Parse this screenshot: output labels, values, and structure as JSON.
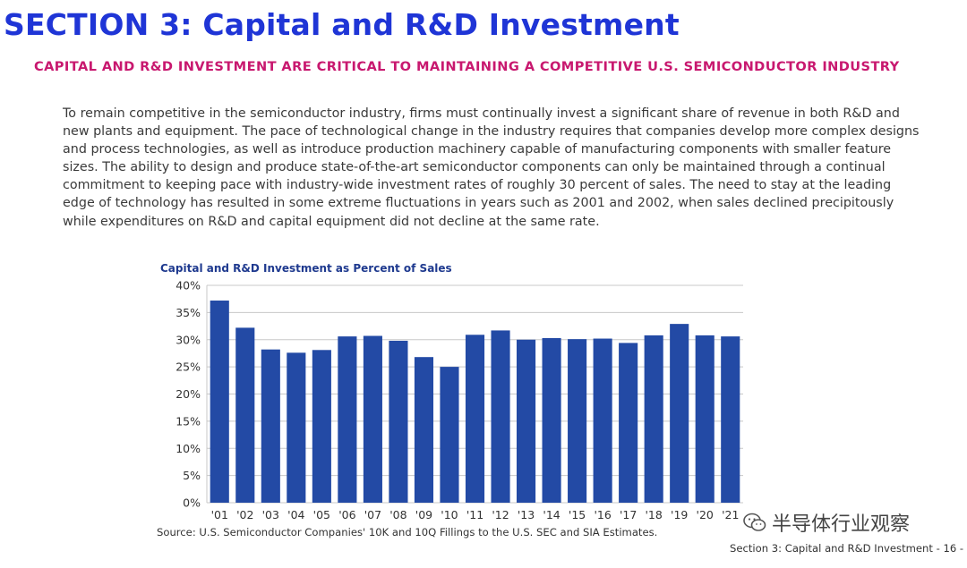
{
  "header": {
    "section_title": "SECTION 3: Capital and R&D Investment",
    "subtitle": "CAPITAL AND R&D INVESTMENT ARE CRITICAL TO MAINTAINING A COMPETITIVE U.S. SEMICONDUCTOR INDUSTRY"
  },
  "body": {
    "paragraph": "To remain competitive in the semiconductor industry, firms must continually invest a significant share of revenue in both R&D and new plants and equipment. The pace of technological change in the industry requires that companies develop more complex designs and process technologies, as well as introduce production machinery capable of manufacturing components with smaller feature sizes. The ability to design and produce state-of-the-art semiconductor components can only be maintained through a continual commitment to keeping pace with industry-wide investment rates of roughly 30 percent of sales. The need to stay at the leading edge of technology has resulted in some extreme fluctuations in years such as 2001 and 2002, when sales declined precipitously while expenditures on R&D and capital equipment did not decline at the same rate."
  },
  "chart_data": {
    "type": "bar",
    "title": "Capital and R&D Investment as Percent of Sales",
    "categories": [
      "'01",
      "'02",
      "'03",
      "'04",
      "'05",
      "'06",
      "'07",
      "'08",
      "'09",
      "'10",
      "'11",
      "'12",
      "'13",
      "'14",
      "'15",
      "'16",
      "'17",
      "'18",
      "'19",
      "'20",
      "'21"
    ],
    "values": [
      37.2,
      32.2,
      28.2,
      27.6,
      28.1,
      30.6,
      30.7,
      29.8,
      26.8,
      25.0,
      30.9,
      31.7,
      30.0,
      30.3,
      30.1,
      30.2,
      29.4,
      30.8,
      32.9,
      30.8,
      30.6
    ],
    "yticks": [
      "0%",
      "5%",
      "10%",
      "15%",
      "20%",
      "25%",
      "30%",
      "35%",
      "40%"
    ],
    "ylim": [
      0,
      40
    ],
    "grid": true,
    "bar_color": "#234aa5",
    "xlabel": "",
    "ylabel": ""
  },
  "source": "Source: U.S. Semiconductor Companies' 10K and 10Q Fillings to the U.S. SEC and SIA Estimates.",
  "footer": "Section 3: Capital and R&D Investment  - 16 -",
  "watermark": {
    "icon": "wechat-icon",
    "text": "半导体行业观察"
  }
}
